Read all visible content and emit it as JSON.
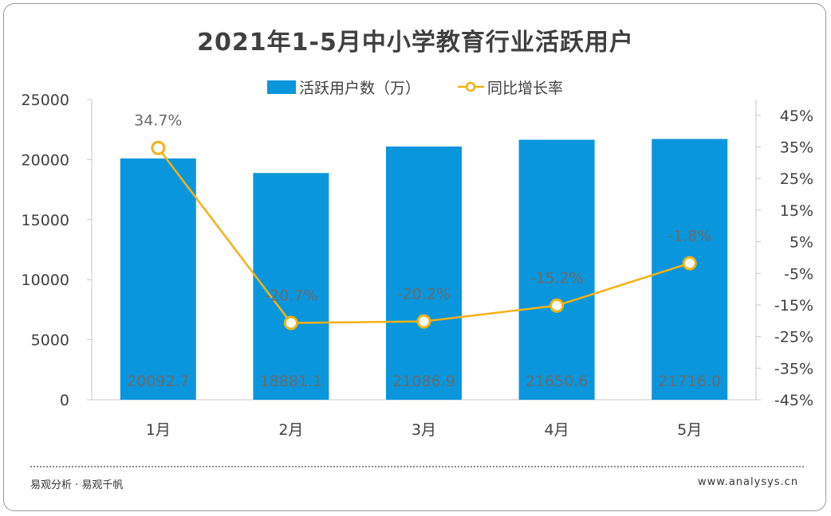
{
  "chart_data": {
    "type": "bar+line",
    "title": "2021年1-5月中小学教育行业活跃用户",
    "categories": [
      "1月",
      "2月",
      "3月",
      "4月",
      "5月"
    ],
    "series": [
      {
        "name": "活跃用户数（万）",
        "type": "bar",
        "axis": "left",
        "values": [
          20092.7,
          18881.1,
          21086.9,
          21650.6,
          21716.0
        ],
        "labels": [
          "20092.7",
          "18881.1",
          "21086.9",
          "21650.6",
          "21716.0"
        ],
        "color": "#0a96dc"
      },
      {
        "name": "同比增长率",
        "type": "line",
        "axis": "right",
        "values": [
          34.7,
          -20.7,
          -20.2,
          -15.2,
          -1.8
        ],
        "labels": [
          "34.7%",
          "-20.7%",
          "-20.2%",
          "-15.2%",
          "-1.8%"
        ],
        "color": "#f5b114"
      }
    ],
    "y_left": {
      "range": [
        0,
        25000
      ],
      "ticks": [
        "0",
        "5000",
        "10000",
        "15000",
        "20000",
        "25000"
      ]
    },
    "y_right": {
      "range": [
        -45,
        50
      ],
      "ticks": [
        "-45%",
        "-35%",
        "-25%",
        "-15%",
        "-5%",
        "5%",
        "15%",
        "25%",
        "35%",
        "45%"
      ]
    },
    "grid": false,
    "legend_position": "top-center"
  },
  "footer": {
    "source": "易观分析 · 易观千帆",
    "url": "www.analysys.cn"
  }
}
